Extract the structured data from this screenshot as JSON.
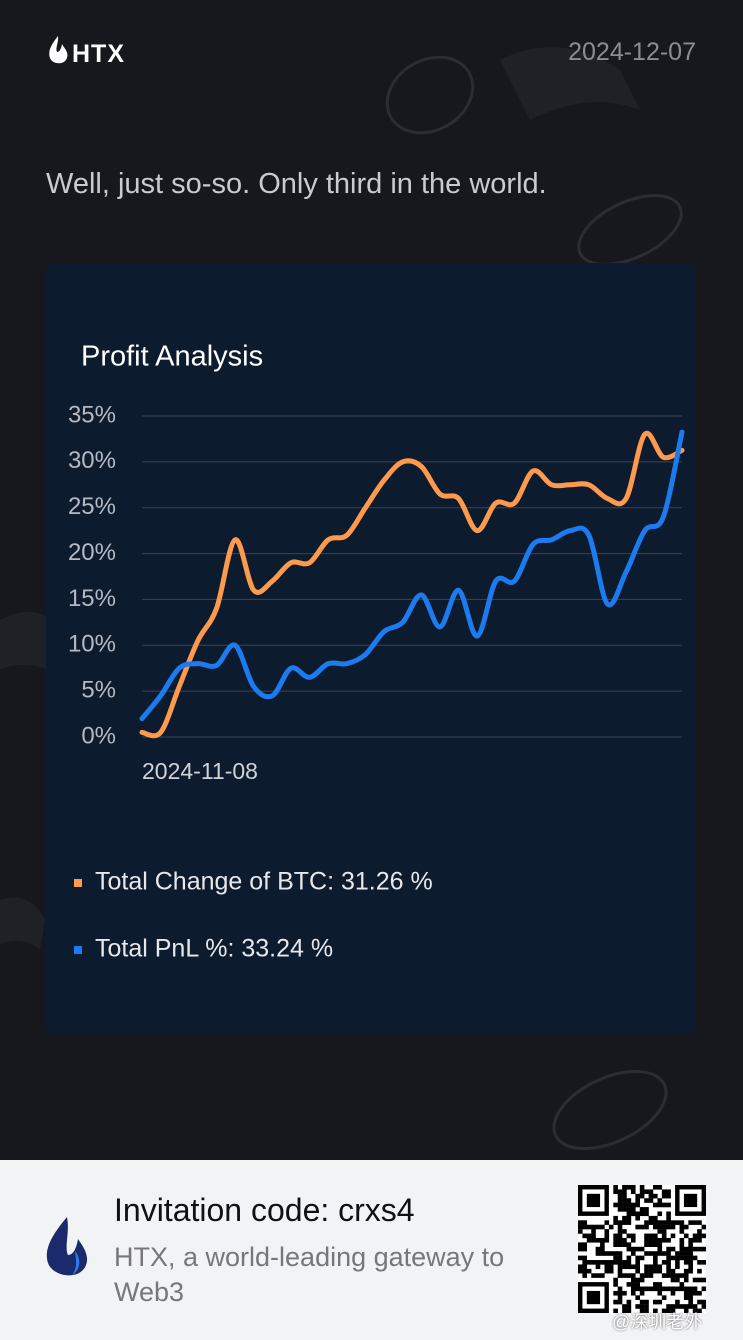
{
  "header": {
    "logo": "HTX",
    "date": "2024-12-07"
  },
  "tagline": "Well, just so-so. Only third in the world.",
  "chart_data": {
    "type": "line",
    "title": "Profit Analysis",
    "categories": [
      "2024-11-08",
      null,
      null,
      null,
      null,
      null,
      null,
      null,
      null,
      null,
      null,
      null,
      null,
      null,
      null,
      null,
      null,
      null,
      null,
      null,
      null,
      null,
      null,
      null,
      null,
      null,
      null,
      null,
      null,
      null
    ],
    "series": [
      {
        "name": "Total Change of BTC: 31.26 %",
        "color": "#ff9a4d",
        "values": [
          0.5,
          0.5,
          5.5,
          10.5,
          14,
          21.5,
          16,
          17,
          19,
          19,
          21.5,
          22,
          25,
          28,
          30,
          29.5,
          26.5,
          26,
          22.5,
          25.5,
          25.5,
          29,
          27.5,
          27.5,
          27.5,
          26,
          26,
          33,
          30.5,
          31.26
        ]
      },
      {
        "name": "Total PnL %: 33.24 %",
        "color": "#1d7bf0",
        "values": [
          2,
          4.5,
          7.5,
          8,
          7.8,
          10,
          5.5,
          4.5,
          7.5,
          6.5,
          8,
          8,
          9,
          11.5,
          12.5,
          15.5,
          12,
          16,
          11,
          17,
          17,
          21,
          21.5,
          22.5,
          22,
          14.5,
          18,
          22.5,
          24,
          33.24
        ]
      }
    ],
    "ylim": [
      0,
      35
    ],
    "yticks": [
      {
        "value": 0,
        "label": "0%"
      },
      {
        "value": 5,
        "label": "5%"
      },
      {
        "value": 10,
        "label": "10%"
      },
      {
        "value": 15,
        "label": "15%"
      },
      {
        "value": 20,
        "label": "20%"
      },
      {
        "value": 25,
        "label": "25%"
      },
      {
        "value": 30,
        "label": "30%"
      },
      {
        "value": 35,
        "label": "35%"
      }
    ],
    "grid": true
  },
  "footer": {
    "invitation": "Invitation code: crxs4",
    "slogan": "HTX, a world-leading gateway to Web3",
    "watermark": "@深圳老外"
  }
}
